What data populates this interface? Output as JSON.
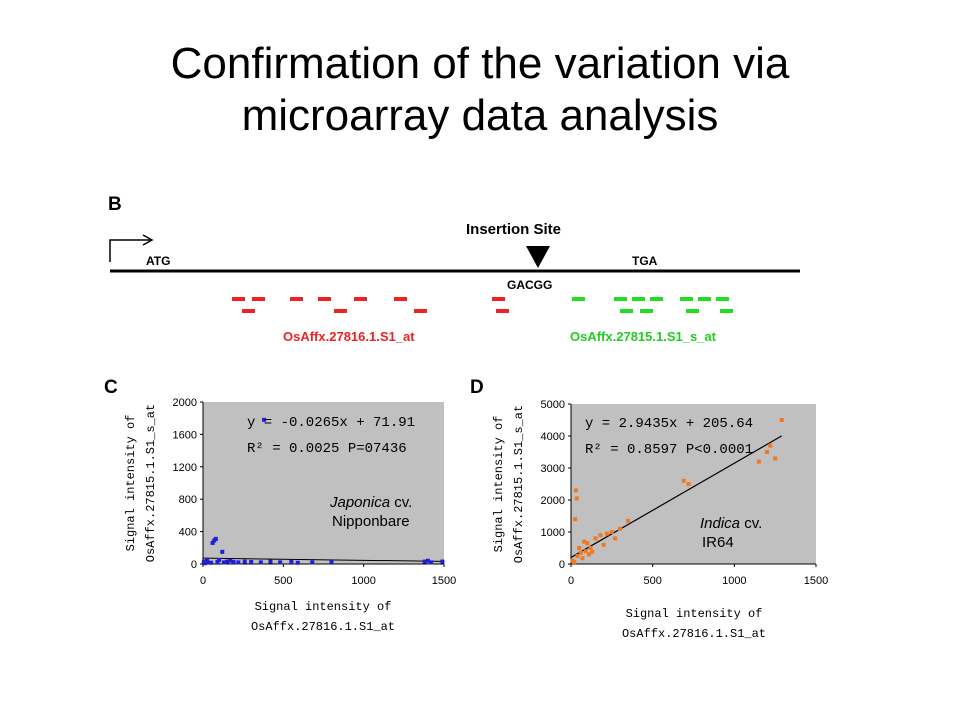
{
  "slide": {
    "title_line1": "Confirmation of the variation via",
    "title_line2": "microarray data analysis"
  },
  "panel_b": {
    "letter": "B",
    "start_codon": "ATG",
    "stop_codon": "TGA",
    "insertion_label": "Insertion Site",
    "insertion_seq": "GACGG",
    "probe_set_left": "OsAffx.27816.1.S1_at",
    "probe_set_right": "OsAffx.27815.1.S1_s_at",
    "color_left": "#ee2222",
    "color_right": "#22dd22"
  },
  "colors": {
    "plot_bg": "#c0c0c0",
    "points_c": "#1f1fd6",
    "points_d": "#f07820"
  },
  "chart_data": [
    {
      "type": "scatter",
      "panel": "C",
      "xlim": [
        0,
        1500
      ],
      "ylim": [
        0,
        2000
      ],
      "xticks": [
        "0",
        "500",
        "1000",
        "1500"
      ],
      "yticks": [
        "0",
        "400",
        "800",
        "1200",
        "1600",
        "2000"
      ],
      "xlabel_line1": "Signal intensity of",
      "xlabel_line2": "OsAffx.27816.1.S1_at",
      "ylabel_line1": "Signal intensity of",
      "ylabel_line2": "OsAffx.27815.1.S1_s_at",
      "equation": "y = -0.0265x + 71.91",
      "r2": "R² = 0.0025 P=07436",
      "annotation_italic": "Japonica",
      "annotation_cv": " cv.",
      "annotation_line2": "Nipponbare",
      "trendline": {
        "slope": -0.0265,
        "intercept": 71.91
      },
      "points": [
        [
          5,
          30
        ],
        [
          15,
          10
        ],
        [
          25,
          40
        ],
        [
          30,
          20
        ],
        [
          50,
          15
        ],
        [
          60,
          260
        ],
        [
          70,
          290
        ],
        [
          80,
          310
        ],
        [
          90,
          25
        ],
        [
          100,
          50
        ],
        [
          120,
          150
        ],
        [
          130,
          20
        ],
        [
          150,
          30
        ],
        [
          170,
          40
        ],
        [
          190,
          25
        ],
        [
          220,
          20
        ],
        [
          260,
          30
        ],
        [
          300,
          25
        ],
        [
          360,
          20
        ],
        [
          380,
          1780
        ],
        [
          420,
          30
        ],
        [
          480,
          20
        ],
        [
          550,
          25
        ],
        [
          590,
          15
        ],
        [
          680,
          20
        ],
        [
          800,
          25
        ],
        [
          1380,
          30
        ],
        [
          1400,
          40
        ],
        [
          1420,
          20
        ],
        [
          1490,
          30
        ]
      ]
    },
    {
      "type": "scatter",
      "panel": "D",
      "xlim": [
        0,
        1500
      ],
      "ylim": [
        0,
        5000
      ],
      "xticks": [
        "0",
        "500",
        "1000",
        "1500"
      ],
      "yticks": [
        "0",
        "1000",
        "2000",
        "3000",
        "4000",
        "5000"
      ],
      "xlabel_line1": "Signal intensity of",
      "xlabel_line2": "OsAffx.27816.1.S1_at",
      "ylabel_line1": "Signal intensity of",
      "ylabel_line2": "OsAffx.27815.1.S1_s_at",
      "equation": "y = 2.9435x + 205.64",
      "r2": "R² = 0.8597 P<0.0001",
      "annotation_italic": "Indica",
      "annotation_cv": " cv.",
      "annotation_line2": "IR64",
      "trendline": {
        "slope": 2.9435,
        "intercept": 205.64
      },
      "points": [
        [
          10,
          100
        ],
        [
          20,
          60
        ],
        [
          25,
          1400
        ],
        [
          30,
          2300
        ],
        [
          35,
          2050
        ],
        [
          40,
          250
        ],
        [
          50,
          500
        ],
        [
          60,
          350
        ],
        [
          70,
          180
        ],
        [
          80,
          700
        ],
        [
          90,
          400
        ],
        [
          100,
          650
        ],
        [
          110,
          300
        ],
        [
          120,
          500
        ],
        [
          130,
          380
        ],
        [
          150,
          800
        ],
        [
          180,
          900
        ],
        [
          200,
          600
        ],
        [
          220,
          950
        ],
        [
          250,
          1000
        ],
        [
          270,
          800
        ],
        [
          300,
          1100
        ],
        [
          350,
          1350
        ],
        [
          690,
          2600
        ],
        [
          720,
          2500
        ],
        [
          1150,
          3200
        ],
        [
          1200,
          3500
        ],
        [
          1220,
          3700
        ],
        [
          1250,
          3300
        ],
        [
          1290,
          4500
        ]
      ]
    }
  ]
}
